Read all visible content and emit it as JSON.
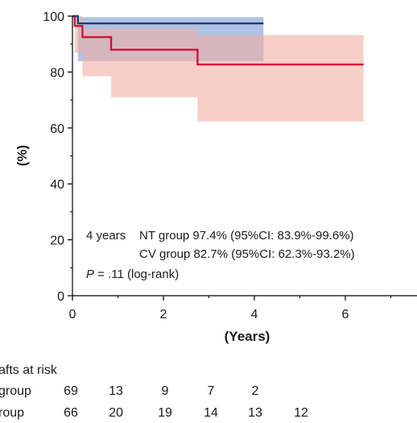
{
  "chart_data": {
    "type": "line",
    "xlabel": "(Years)",
    "ylabel": "(%)",
    "xlim": [
      0,
      7.5
    ],
    "ylim": [
      0,
      100
    ],
    "x_ticks": [
      "0",
      "2",
      "4",
      "6"
    ],
    "y_ticks": [
      "0",
      "20",
      "40",
      "60",
      "80",
      "100"
    ],
    "grid": false,
    "series": [
      {
        "name": "NT group",
        "color": "#1f3b73",
        "band_color": "#6f8fcf",
        "steps": [
          [
            0,
            100
          ],
          [
            0.12,
            97.4
          ],
          [
            4.2,
            97.4
          ]
        ],
        "ci_band": [
          [
            0,
            100,
            100
          ],
          [
            0.12,
            83.9,
            99.6
          ],
          [
            4.2,
            83.9,
            99.6
          ]
        ]
      },
      {
        "name": "CV group",
        "color": "#d0103a",
        "band_color": "#f2aea4",
        "steps": [
          [
            0,
            100
          ],
          [
            0.05,
            96.5
          ],
          [
            0.22,
            92.5
          ],
          [
            0.85,
            88.0
          ],
          [
            2.75,
            82.7
          ],
          [
            6.4,
            82.7
          ]
        ],
        "ci_band": [
          [
            0,
            100,
            100
          ],
          [
            0.05,
            87,
            100
          ],
          [
            0.22,
            78.5,
            95.5
          ],
          [
            0.85,
            71,
            95.5
          ],
          [
            2.75,
            62.3,
            93.2
          ],
          [
            6.4,
            62.3,
            93.2
          ]
        ]
      }
    ],
    "annotations": {
      "line1_prefix": "4 years",
      "line1": "NT group 97.4% (95%CI: 83.9%-99.6%)",
      "line2": "CV group 82.7% (95%CI: 62.3%-93.2%)",
      "p_letter": "P",
      "p_rest": " = .11 (log-rank)"
    },
    "risk_table": {
      "title": "afts at risk",
      "rows": [
        {
          "label": "group",
          "values": [
            "69",
            "13",
            "9",
            "7",
            "2"
          ]
        },
        {
          "label": "roup",
          "values": [
            "66",
            "20",
            "19",
            "14",
            "13",
            "12"
          ]
        }
      ]
    }
  }
}
